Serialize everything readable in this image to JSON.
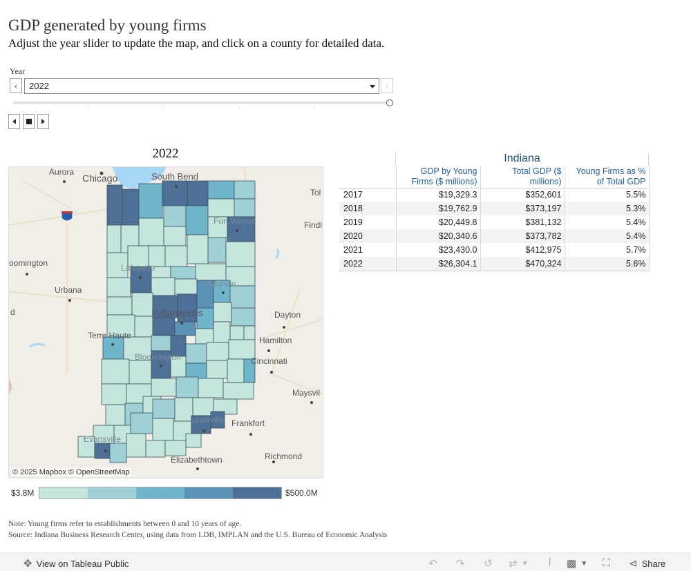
{
  "header": {
    "title": "GDP generated by young firms",
    "subtitle": "Adjust the year slider to update the map, and click on a county for detailed data."
  },
  "year_filter": {
    "label": "Year",
    "selected": "2022",
    "prev_icon": "chevron-left-icon",
    "next_icon": "chevron-right-icon",
    "slider_position": 1.0
  },
  "playback": {
    "back_icon": "step-back-icon",
    "stop_icon": "stop-icon",
    "forward_icon": "play-icon"
  },
  "map": {
    "title": "2022",
    "attribution": "© 2025 Mapbox  © OpenStreetMap",
    "city_labels": [
      "Aurora",
      "Chicago",
      "South Bend",
      "Tol",
      "Fort Wayne",
      "Findl",
      "Lafayette",
      "oomington",
      "Urbana",
      "Muncie",
      "d",
      "Indianapolis",
      "Dayton",
      "Terre Haute",
      "Hamilton",
      "Cincinnati",
      "Bloomington",
      "Maysvil",
      "Louisville",
      "Frankfort",
      "Evansville",
      "Richmond",
      "Elizabethtown"
    ],
    "legend": {
      "min_label": "$3.8M",
      "max_label": "$500.0M",
      "colors": [
        "#c4e6dc",
        "#9fd0d6",
        "#6fb5cc",
        "#5a93b6",
        "#4e6f96"
      ]
    }
  },
  "table": {
    "state": "Indiana",
    "columns": [
      "GDP by Young Firms ($ millions)",
      "Total GDP ($ millions)",
      "Young Firms as % of Total GDP"
    ],
    "rows": [
      {
        "year": "2017",
        "young": "$19,329.3",
        "total": "$352,601",
        "pct": "5.5%"
      },
      {
        "year": "2018",
        "young": "$19,762.9",
        "total": "$373,197",
        "pct": "5.3%"
      },
      {
        "year": "2019",
        "young": "$20,449.8",
        "total": "$381,132",
        "pct": "5.4%"
      },
      {
        "year": "2020",
        "young": "$20,340.6",
        "total": "$373,782",
        "pct": "5.4%"
      },
      {
        "year": "2021",
        "young": "$23,430.0",
        "total": "$412,975",
        "pct": "5.7%"
      },
      {
        "year": "2022",
        "young": "$26,304.1",
        "total": "$470,324",
        "pct": "5.6%"
      }
    ]
  },
  "notes": {
    "note": "Note: Young firms refer to establishments between 0 and 10 years of age.",
    "source": "Source: Indiana Business Research Center, using data from LDB, IMPLAN and the U.S. Bureau of Economic Analysis"
  },
  "footer": {
    "view_label": "View on Tableau Public",
    "share_label": "Share"
  }
}
